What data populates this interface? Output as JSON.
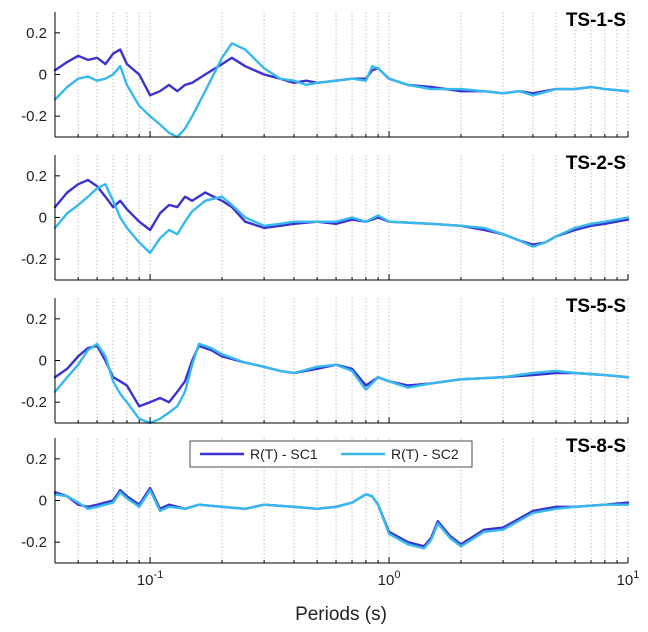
{
  "colors": {
    "SC1": "#3a32d1",
    "SC2": "#37b9ee",
    "grid": "#b9b9b9",
    "axis": "#000000"
  },
  "xlabel": "Periods (s)",
  "x_tick_labels": [
    {
      "base": "10",
      "exp": "-1"
    },
    {
      "base": "10",
      "exp": "0"
    },
    {
      "base": "10",
      "exp": "1"
    }
  ],
  "legend": [
    "R(T) - SC1",
    "R(T) - SC2"
  ],
  "chart_data": [
    {
      "type": "line",
      "title": "TS-1-S",
      "xscale": "log",
      "xlim": [
        0.04,
        10
      ],
      "ylim": [
        -0.3,
        0.3
      ],
      "y_ticks": [
        "0.2",
        "0",
        "-0.2"
      ],
      "grid": "vertical dotted at each period decade subdivision",
      "series": [
        {
          "name": "R(T) - SC1",
          "x": [
            0.04,
            0.045,
            0.05,
            0.055,
            0.06,
            0.065,
            0.07,
            0.075,
            0.08,
            0.09,
            0.1,
            0.11,
            0.12,
            0.13,
            0.14,
            0.15,
            0.17,
            0.2,
            0.22,
            0.25,
            0.3,
            0.35,
            0.4,
            0.45,
            0.5,
            0.6,
            0.7,
            0.8,
            0.85,
            0.9,
            1,
            1.2,
            1.5,
            2,
            2.5,
            3,
            3.5,
            4,
            5,
            6,
            7,
            8,
            10
          ],
          "y": [
            0.02,
            0.06,
            0.09,
            0.07,
            0.08,
            0.05,
            0.1,
            0.12,
            0.05,
            0.0,
            -0.1,
            -0.08,
            -0.05,
            -0.08,
            -0.05,
            -0.04,
            0.0,
            0.05,
            0.08,
            0.04,
            0.0,
            -0.02,
            -0.04,
            -0.03,
            -0.04,
            -0.03,
            -0.02,
            -0.02,
            0.02,
            0.03,
            -0.02,
            -0.05,
            -0.06,
            -0.08,
            -0.08,
            -0.09,
            -0.08,
            -0.09,
            -0.07,
            -0.07,
            -0.06,
            -0.07,
            -0.08
          ]
        },
        {
          "name": "R(T) - SC2",
          "x": [
            0.04,
            0.045,
            0.05,
            0.055,
            0.06,
            0.065,
            0.07,
            0.075,
            0.08,
            0.09,
            0.1,
            0.11,
            0.12,
            0.13,
            0.14,
            0.15,
            0.17,
            0.2,
            0.22,
            0.25,
            0.3,
            0.35,
            0.4,
            0.45,
            0.5,
            0.6,
            0.7,
            0.8,
            0.85,
            0.9,
            1,
            1.2,
            1.5,
            2,
            2.5,
            3,
            3.5,
            4,
            5,
            6,
            7,
            8,
            10
          ],
          "y": [
            -0.12,
            -0.06,
            -0.02,
            -0.01,
            -0.03,
            -0.02,
            0.0,
            0.04,
            -0.05,
            -0.15,
            -0.2,
            -0.24,
            -0.28,
            -0.3,
            -0.26,
            -0.2,
            -0.08,
            0.08,
            0.15,
            0.12,
            0.03,
            -0.02,
            -0.03,
            -0.05,
            -0.04,
            -0.03,
            -0.02,
            -0.03,
            0.04,
            0.03,
            -0.02,
            -0.05,
            -0.07,
            -0.07,
            -0.08,
            -0.09,
            -0.08,
            -0.1,
            -0.07,
            -0.07,
            -0.06,
            -0.07,
            -0.08
          ]
        }
      ]
    },
    {
      "type": "line",
      "title": "TS-2-S",
      "xscale": "log",
      "xlim": [
        0.04,
        10
      ],
      "ylim": [
        -0.3,
        0.3
      ],
      "y_ticks": [
        "0.2",
        "0",
        "-0.2"
      ],
      "grid": "vertical dotted at each period decade subdivision",
      "series": [
        {
          "name": "R(T) - SC1",
          "x": [
            0.04,
            0.045,
            0.05,
            0.055,
            0.06,
            0.065,
            0.07,
            0.075,
            0.08,
            0.09,
            0.1,
            0.11,
            0.12,
            0.13,
            0.14,
            0.15,
            0.17,
            0.2,
            0.22,
            0.25,
            0.3,
            0.35,
            0.4,
            0.5,
            0.6,
            0.7,
            0.8,
            0.9,
            1,
            1.5,
            2,
            2.5,
            3,
            3.5,
            4,
            4.5,
            5,
            6,
            7,
            8,
            10
          ],
          "y": [
            0.05,
            0.12,
            0.16,
            0.18,
            0.15,
            0.1,
            0.05,
            0.08,
            0.04,
            -0.02,
            -0.06,
            0.02,
            0.06,
            0.05,
            0.1,
            0.08,
            0.12,
            0.08,
            0.05,
            -0.02,
            -0.05,
            -0.04,
            -0.03,
            -0.02,
            -0.03,
            -0.01,
            -0.02,
            0.0,
            -0.02,
            -0.03,
            -0.04,
            -0.06,
            -0.08,
            -0.11,
            -0.13,
            -0.12,
            -0.09,
            -0.06,
            -0.04,
            -0.03,
            -0.01
          ]
        },
        {
          "name": "R(T) - SC2",
          "x": [
            0.04,
            0.045,
            0.05,
            0.055,
            0.06,
            0.065,
            0.07,
            0.075,
            0.08,
            0.09,
            0.1,
            0.11,
            0.12,
            0.13,
            0.14,
            0.15,
            0.17,
            0.2,
            0.22,
            0.25,
            0.3,
            0.35,
            0.4,
            0.5,
            0.6,
            0.7,
            0.8,
            0.9,
            1,
            1.5,
            2,
            2.5,
            3,
            3.5,
            4,
            4.5,
            5,
            6,
            7,
            8,
            10
          ],
          "y": [
            -0.05,
            0.02,
            0.06,
            0.1,
            0.14,
            0.16,
            0.08,
            0.0,
            -0.05,
            -0.12,
            -0.17,
            -0.1,
            -0.06,
            -0.08,
            -0.02,
            0.03,
            0.08,
            0.1,
            0.06,
            0.0,
            -0.04,
            -0.03,
            -0.02,
            -0.02,
            -0.02,
            0.0,
            -0.02,
            0.01,
            -0.02,
            -0.03,
            -0.04,
            -0.05,
            -0.08,
            -0.11,
            -0.14,
            -0.12,
            -0.09,
            -0.05,
            -0.03,
            -0.02,
            0.0
          ]
        }
      ]
    },
    {
      "type": "line",
      "title": "TS-5-S",
      "xscale": "log",
      "xlim": [
        0.04,
        10
      ],
      "ylim": [
        -0.3,
        0.3
      ],
      "y_ticks": [
        "0.2",
        "0",
        "-0.2"
      ],
      "grid": "vertical dotted at each period decade subdivision",
      "series": [
        {
          "name": "R(T) - SC1",
          "x": [
            0.04,
            0.045,
            0.05,
            0.055,
            0.06,
            0.065,
            0.07,
            0.075,
            0.08,
            0.09,
            0.1,
            0.11,
            0.12,
            0.13,
            0.14,
            0.15,
            0.16,
            0.18,
            0.2,
            0.25,
            0.3,
            0.35,
            0.4,
            0.5,
            0.6,
            0.7,
            0.8,
            0.9,
            1,
            1.2,
            1.5,
            2,
            3,
            4,
            5,
            6,
            8,
            10
          ],
          "y": [
            -0.08,
            -0.04,
            0.02,
            0.06,
            0.07,
            0.0,
            -0.08,
            -0.1,
            -0.12,
            -0.22,
            -0.2,
            -0.18,
            -0.2,
            -0.15,
            -0.1,
            0.0,
            0.07,
            0.05,
            0.02,
            -0.01,
            -0.03,
            -0.05,
            -0.06,
            -0.04,
            -0.02,
            -0.04,
            -0.12,
            -0.08,
            -0.1,
            -0.12,
            -0.11,
            -0.09,
            -0.08,
            -0.07,
            -0.06,
            -0.06,
            -0.07,
            -0.08
          ]
        },
        {
          "name": "R(T) - SC2",
          "x": [
            0.04,
            0.045,
            0.05,
            0.055,
            0.06,
            0.065,
            0.07,
            0.075,
            0.08,
            0.09,
            0.1,
            0.11,
            0.12,
            0.13,
            0.14,
            0.15,
            0.16,
            0.18,
            0.2,
            0.25,
            0.3,
            0.35,
            0.4,
            0.5,
            0.6,
            0.7,
            0.8,
            0.9,
            1,
            1.2,
            1.5,
            2,
            3,
            4,
            5,
            6,
            8,
            10
          ],
          "y": [
            -0.15,
            -0.08,
            -0.02,
            0.05,
            0.08,
            0.02,
            -0.1,
            -0.16,
            -0.2,
            -0.28,
            -0.3,
            -0.28,
            -0.25,
            -0.22,
            -0.15,
            -0.02,
            0.08,
            0.06,
            0.03,
            -0.01,
            -0.03,
            -0.05,
            -0.06,
            -0.03,
            -0.02,
            -0.05,
            -0.14,
            -0.08,
            -0.1,
            -0.13,
            -0.11,
            -0.09,
            -0.08,
            -0.06,
            -0.05,
            -0.06,
            -0.07,
            -0.08
          ]
        }
      ]
    },
    {
      "type": "line",
      "title": "TS-8-S",
      "xscale": "log",
      "xlim": [
        0.04,
        10
      ],
      "ylim": [
        -0.3,
        0.3
      ],
      "y_ticks": [
        "0.2",
        "0",
        "-0.2"
      ],
      "grid": "vertical dotted at each period decade subdivision",
      "legend": "top center",
      "series": [
        {
          "name": "R(T) - SC1",
          "x": [
            0.04,
            0.045,
            0.05,
            0.055,
            0.06,
            0.07,
            0.075,
            0.08,
            0.09,
            0.1,
            0.11,
            0.12,
            0.14,
            0.16,
            0.2,
            0.25,
            0.3,
            0.4,
            0.5,
            0.6,
            0.7,
            0.8,
            0.85,
            0.9,
            1,
            1.2,
            1.4,
            1.5,
            1.6,
            1.8,
            2,
            2.2,
            2.5,
            3,
            4,
            5,
            6,
            8,
            10
          ],
          "y": [
            0.04,
            0.02,
            -0.02,
            -0.03,
            -0.02,
            0.0,
            0.05,
            0.02,
            -0.02,
            0.06,
            -0.04,
            -0.02,
            -0.04,
            -0.02,
            -0.03,
            -0.04,
            -0.02,
            -0.03,
            -0.04,
            -0.03,
            -0.01,
            0.03,
            0.02,
            -0.02,
            -0.15,
            -0.2,
            -0.22,
            -0.18,
            -0.1,
            -0.17,
            -0.21,
            -0.18,
            -0.14,
            -0.13,
            -0.05,
            -0.03,
            -0.03,
            -0.02,
            -0.01
          ]
        },
        {
          "name": "R(T) - SC2",
          "x": [
            0.04,
            0.045,
            0.05,
            0.055,
            0.06,
            0.07,
            0.075,
            0.08,
            0.09,
            0.1,
            0.11,
            0.12,
            0.14,
            0.16,
            0.2,
            0.25,
            0.3,
            0.4,
            0.5,
            0.6,
            0.7,
            0.8,
            0.85,
            0.9,
            1,
            1.2,
            1.4,
            1.5,
            1.6,
            1.8,
            2,
            2.2,
            2.5,
            3,
            4,
            5,
            6,
            8,
            10
          ],
          "y": [
            0.03,
            0.02,
            -0.01,
            -0.04,
            -0.03,
            -0.01,
            0.04,
            0.01,
            -0.03,
            0.05,
            -0.05,
            -0.03,
            -0.04,
            -0.02,
            -0.03,
            -0.04,
            -0.02,
            -0.03,
            -0.04,
            -0.03,
            -0.01,
            0.03,
            0.02,
            -0.02,
            -0.16,
            -0.21,
            -0.23,
            -0.19,
            -0.11,
            -0.18,
            -0.22,
            -0.19,
            -0.15,
            -0.14,
            -0.06,
            -0.04,
            -0.03,
            -0.02,
            -0.02
          ]
        }
      ]
    }
  ]
}
